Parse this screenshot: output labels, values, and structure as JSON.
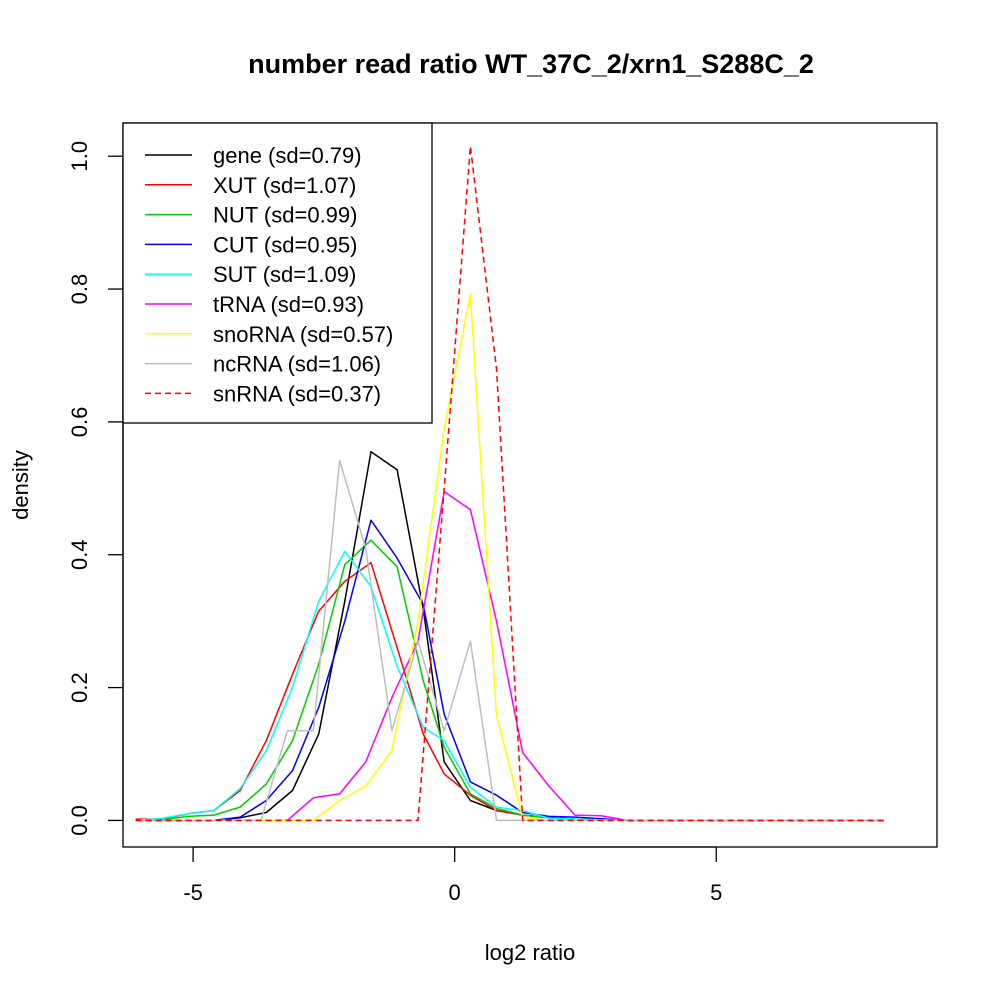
{
  "chart_data": {
    "type": "line",
    "title": "number read ratio WT_37C_2/xrn1_S288C_2",
    "xlabel": "log2 ratio",
    "ylabel": "density",
    "xlim": [
      -6.34,
      9.22
    ],
    "ylim": [
      -0.04,
      1.05
    ],
    "xticks": [
      -5,
      0,
      5
    ],
    "xtick_labels": [
      "-5",
      "0",
      "5"
    ],
    "yticks": [
      0.0,
      0.2,
      0.4,
      0.6,
      0.8,
      1.0
    ],
    "ytick_labels": [
      "0.0",
      "0.2",
      "0.4",
      "0.6",
      "0.8",
      "1.0"
    ],
    "grid": false,
    "legend_position": "top-left",
    "series": [
      {
        "name": "gene (sd=0.79)",
        "color": "#000000",
        "dash": "solid",
        "x": [
          -6.1,
          -5.6,
          -5.1,
          -4.6,
          -4.1,
          -3.6,
          -3.1,
          -2.6,
          -2.1,
          -1.6,
          -1.1,
          -0.6,
          -0.2,
          0.3,
          0.8,
          1.3,
          1.8,
          2.3,
          3.3,
          8.2
        ],
        "y": [
          0.0,
          0.0,
          0.0,
          0.0,
          0.004,
          0.012,
          0.045,
          0.13,
          0.33,
          0.555,
          0.528,
          0.318,
          0.088,
          0.03,
          0.015,
          0.008,
          0.004,
          0.002,
          0.0,
          0.0
        ]
      },
      {
        "name": "XUT (sd=1.07)",
        "color": "#ff0000",
        "dash": "solid",
        "x": [
          -6.1,
          -5.6,
          -5.1,
          -4.6,
          -4.1,
          -3.6,
          -3.1,
          -2.6,
          -2.1,
          -1.6,
          -1.1,
          -0.6,
          -0.2,
          0.3,
          0.8,
          1.3,
          1.8,
          2.3,
          3.3,
          8.2
        ],
        "y": [
          0.002,
          0.002,
          0.01,
          0.015,
          0.045,
          0.12,
          0.22,
          0.315,
          0.36,
          0.388,
          0.26,
          0.13,
          0.07,
          0.038,
          0.015,
          0.008,
          0.004,
          0.002,
          0.0,
          0.0
        ]
      },
      {
        "name": "NUT (sd=0.99)",
        "color": "#00cd00",
        "dash": "solid",
        "x": [
          -6.1,
          -5.6,
          -5.1,
          -4.6,
          -4.1,
          -3.6,
          -3.1,
          -2.6,
          -2.1,
          -1.6,
          -1.1,
          -0.6,
          -0.2,
          0.3,
          0.8,
          1.3,
          1.8,
          2.3,
          3.3,
          8.2
        ],
        "y": [
          0.0,
          0.001,
          0.006,
          0.008,
          0.02,
          0.055,
          0.12,
          0.235,
          0.385,
          0.422,
          0.382,
          0.21,
          0.11,
          0.04,
          0.018,
          0.008,
          0.004,
          0.002,
          0.0,
          0.0
        ]
      },
      {
        "name": "CUT (sd=0.95)",
        "color": "#0000ff",
        "dash": "solid",
        "x": [
          -6.1,
          -5.6,
          -5.1,
          -4.6,
          -4.1,
          -3.6,
          -3.1,
          -2.6,
          -2.1,
          -1.6,
          -1.1,
          -0.6,
          -0.2,
          0.3,
          0.8,
          1.3,
          1.8,
          2.3,
          3.3,
          8.2
        ],
        "y": [
          0.0,
          0.0,
          0.0,
          0.0,
          0.005,
          0.03,
          0.075,
          0.17,
          0.3,
          0.452,
          0.395,
          0.325,
          0.16,
          0.058,
          0.038,
          0.012,
          0.006,
          0.005,
          0.0,
          0.0
        ]
      },
      {
        "name": "SUT (sd=1.09)",
        "color": "#00ffff",
        "dash": "solid",
        "x": [
          -6.1,
          -5.6,
          -5.1,
          -4.6,
          -4.1,
          -3.6,
          -3.1,
          -2.6,
          -2.1,
          -1.6,
          -1.1,
          -0.6,
          -0.2,
          0.3,
          0.8,
          1.3,
          1.8,
          2.3,
          3.3,
          8.2
        ],
        "y": [
          0.0,
          0.003,
          0.01,
          0.015,
          0.048,
          0.105,
          0.2,
          0.33,
          0.405,
          0.352,
          0.232,
          0.14,
          0.12,
          0.05,
          0.02,
          0.015,
          0.003,
          0.002,
          0.0,
          0.0
        ]
      },
      {
        "name": "tRNA (sd=0.93)",
        "color": "#ff00ff",
        "dash": "solid",
        "x": [
          -6.1,
          -3.2,
          -2.7,
          -2.2,
          -1.7,
          -1.2,
          -0.7,
          -0.2,
          0.3,
          0.8,
          1.3,
          1.8,
          2.3,
          2.8,
          3.3,
          8.2
        ],
        "y": [
          0.0,
          0.0,
          0.034,
          0.04,
          0.088,
          0.185,
          0.27,
          0.495,
          0.468,
          0.3,
          0.102,
          0.052,
          0.008,
          0.007,
          0.0,
          0.0
        ]
      },
      {
        "name": "snoRNA (sd=0.57)",
        "color": "#ffff00",
        "dash": "solid",
        "x": [
          -6.1,
          -2.7,
          -2.2,
          -1.7,
          -1.2,
          -0.7,
          -0.2,
          0.3,
          0.8,
          1.3,
          1.8,
          8.2
        ],
        "y": [
          0.0,
          0.0,
          0.03,
          0.052,
          0.105,
          0.3,
          0.59,
          0.792,
          0.158,
          0.004,
          0.0,
          0.0
        ]
      },
      {
        "name": "ncRNA (sd=1.06)",
        "color": "#bebebe",
        "dash": "solid",
        "x": [
          -6.1,
          -3.7,
          -3.2,
          -2.7,
          -2.2,
          -1.7,
          -1.2,
          -0.7,
          -0.2,
          0.3,
          0.8,
          1.3,
          8.2
        ],
        "y": [
          0.0,
          0.0,
          0.135,
          0.135,
          0.542,
          0.41,
          0.135,
          0.27,
          0.135,
          0.27,
          0.0,
          0.0,
          0.0
        ]
      },
      {
        "name": "snRNA (sd=0.37)",
        "color": "#ff0000",
        "dash": "dashed",
        "x": [
          -6.1,
          -0.7,
          -0.2,
          0.3,
          0.8,
          1.3,
          1.8,
          8.2
        ],
        "y": [
          0.0,
          0.0,
          0.5,
          1.015,
          0.68,
          0.0,
          0.0,
          0.0
        ]
      }
    ]
  }
}
